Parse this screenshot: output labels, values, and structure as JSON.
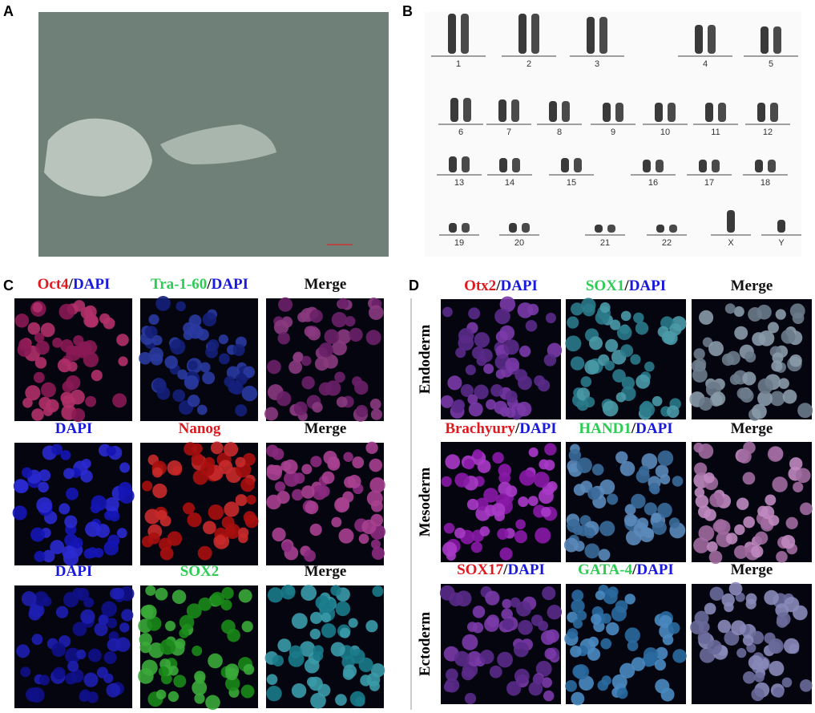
{
  "panel_a": {
    "label": "A"
  },
  "panel_b": {
    "label": "B",
    "chromosomes": [
      "1",
      "2",
      "3",
      "4",
      "5",
      "6",
      "7",
      "8",
      "9",
      "10",
      "11",
      "12",
      "13",
      "14",
      "15",
      "16",
      "17",
      "18",
      "19",
      "20",
      "21",
      "22",
      "X",
      "Y"
    ]
  },
  "panel_c": {
    "label": "C",
    "headers": [
      [
        [
          {
            "text": "Oct4",
            "color": "#e0191f"
          },
          {
            "text": "/",
            "color": "#111111"
          },
          {
            "text": "DAPI",
            "color": "#1a1adb"
          }
        ],
        [
          {
            "text": "Tra-1-60",
            "color": "#2ecc55"
          },
          {
            "text": "/",
            "color": "#111111"
          },
          {
            "text": "DAPI",
            "color": "#1a1adb"
          }
        ],
        [
          {
            "text": "Merge",
            "color": "#111111"
          }
        ]
      ],
      [
        [
          {
            "text": "DAPI",
            "color": "#1a1adb"
          }
        ],
        [
          {
            "text": "Nanog",
            "color": "#e0191f"
          }
        ],
        [
          {
            "text": "Merge",
            "color": "#111111"
          }
        ]
      ],
      [
        [
          {
            "text": "DAPI",
            "color": "#1a1adb"
          }
        ],
        [
          {
            "text": "SOX2",
            "color": "#2ecc55"
          }
        ],
        [
          {
            "text": "Merge",
            "color": "#111111"
          }
        ]
      ]
    ]
  },
  "panel_d": {
    "label": "D",
    "rows": [
      "Endoderm",
      "Mesoderm",
      "Ectoderm"
    ],
    "headers": [
      [
        [
          {
            "text": "Otx2",
            "color": "#e0191f"
          },
          {
            "text": "/",
            "color": "#111111"
          },
          {
            "text": "DAPI",
            "color": "#1a1adb"
          }
        ],
        [
          {
            "text": "SOX1",
            "color": "#2ecc55"
          },
          {
            "text": "/",
            "color": "#111111"
          },
          {
            "text": "DAPI",
            "color": "#1a1adb"
          }
        ],
        [
          {
            "text": "Merge",
            "color": "#111111"
          }
        ]
      ],
      [
        [
          {
            "text": "Brachyury",
            "color": "#e0191f"
          },
          {
            "text": "/",
            "color": "#111111"
          },
          {
            "text": "DAPI",
            "color": "#1a1adb"
          }
        ],
        [
          {
            "text": "HAND1",
            "color": "#2ecc55"
          },
          {
            "text": "/",
            "color": "#111111"
          },
          {
            "text": "DAPI",
            "color": "#1a1adb"
          }
        ],
        [
          {
            "text": "Merge",
            "color": "#111111"
          }
        ]
      ],
      [
        [
          {
            "text": "SOX17",
            "color": "#e0191f"
          },
          {
            "text": "/",
            "color": "#111111"
          },
          {
            "text": "DAPI",
            "color": "#1a1adb"
          }
        ],
        [
          {
            "text": "GATA-4",
            "color": "#2ecc55"
          },
          {
            "text": "/",
            "color": "#111111"
          },
          {
            "text": "DAPI",
            "color": "#1a1adb"
          }
        ],
        [
          {
            "text": "Merge",
            "color": "#111111"
          }
        ]
      ]
    ]
  }
}
